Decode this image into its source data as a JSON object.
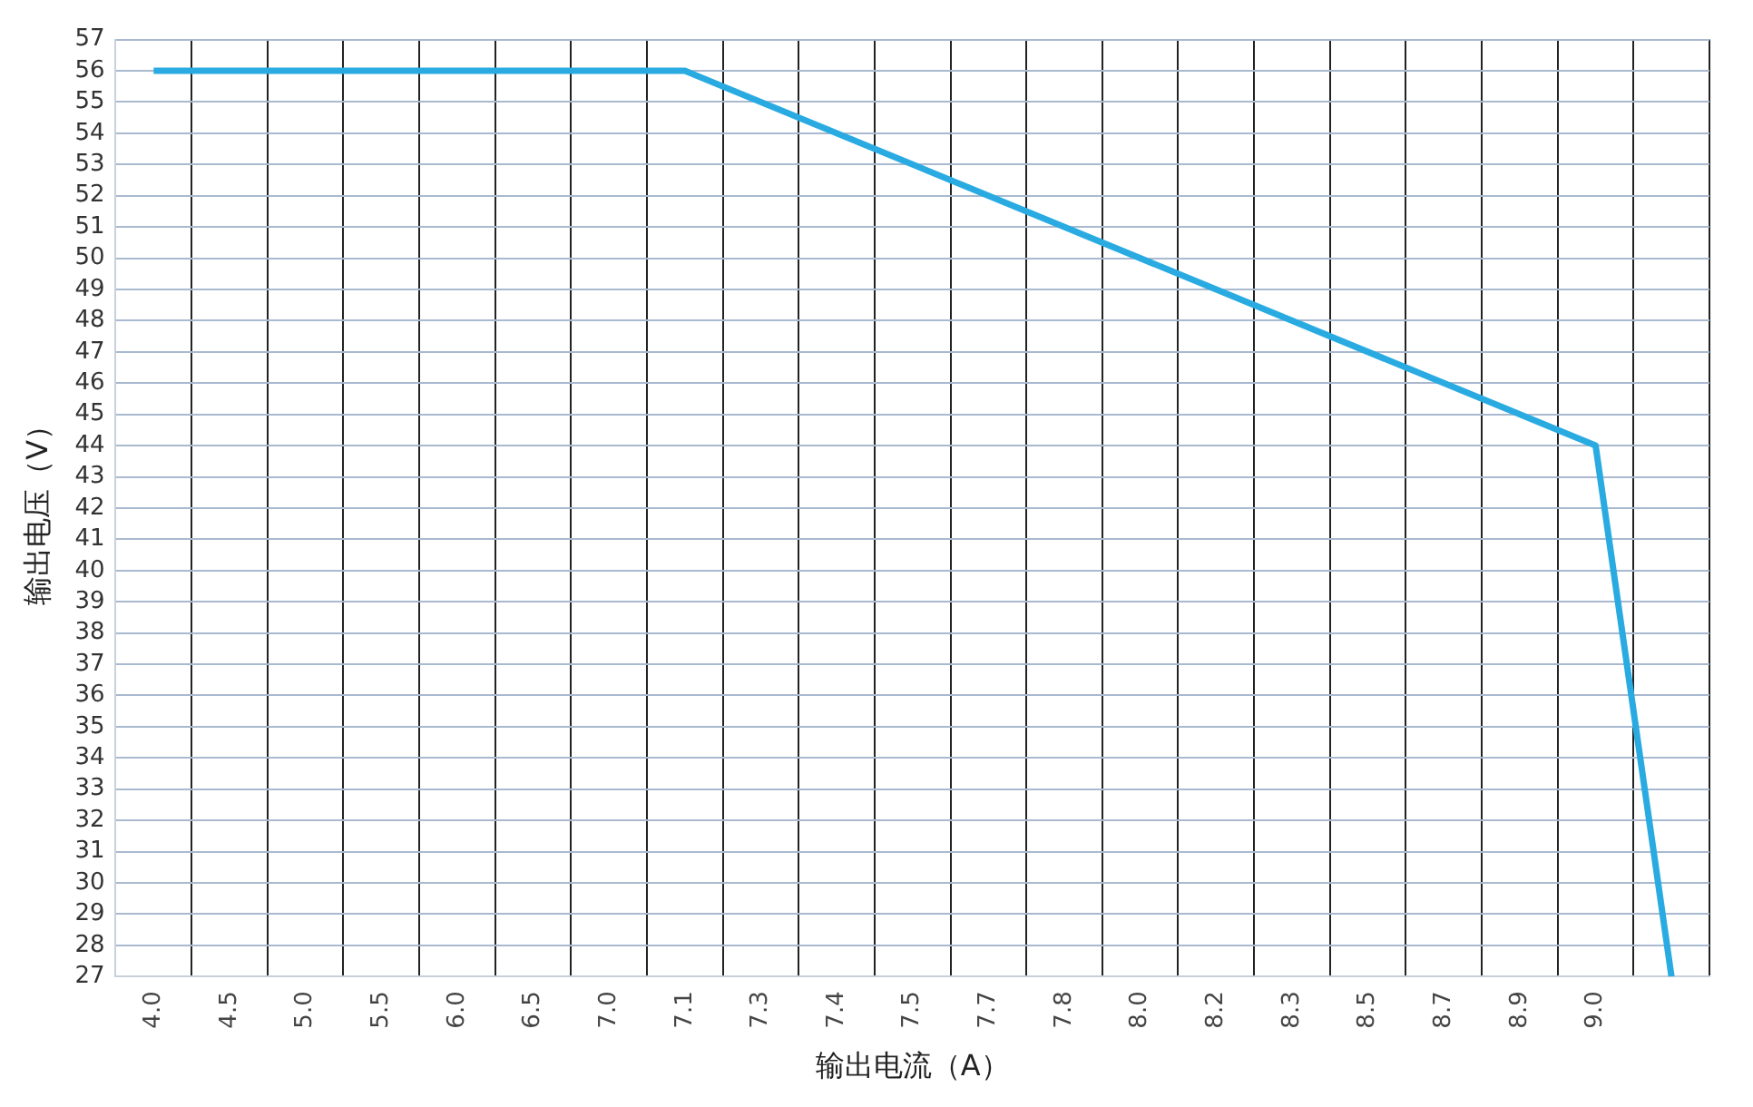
{
  "chart_data": {
    "type": "line",
    "xlabel": "输出电流（A）",
    "ylabel": "输出电压（V）",
    "categories": [
      "4.0",
      "4.5",
      "5.0",
      "5.5",
      "6.0",
      "6.5",
      "7.0",
      "7.1",
      "7.3",
      "7.4",
      "7.5",
      "7.7",
      "7.8",
      "8.0",
      "8.2",
      "8.3",
      "8.5",
      "8.7",
      "8.9",
      "9.0",
      null
    ],
    "series": [
      {
        "color": "#29abe2",
        "values": [
          56,
          null,
          null,
          null,
          null,
          null,
          null,
          56,
          null,
          null,
          null,
          null,
          null,
          null,
          null,
          null,
          null,
          null,
          null,
          44,
          27
        ]
      }
    ],
    "ylim": [
      27,
      57
    ],
    "yticks": [
      27,
      28,
      29,
      30,
      31,
      32,
      33,
      34,
      35,
      36,
      37,
      38,
      39,
      40,
      41,
      42,
      43,
      44,
      45,
      46,
      47,
      48,
      49,
      50,
      51,
      52,
      53,
      54,
      55,
      56,
      57
    ],
    "grid": true,
    "legend": false,
    "marker": "none",
    "line_style": "solid"
  }
}
